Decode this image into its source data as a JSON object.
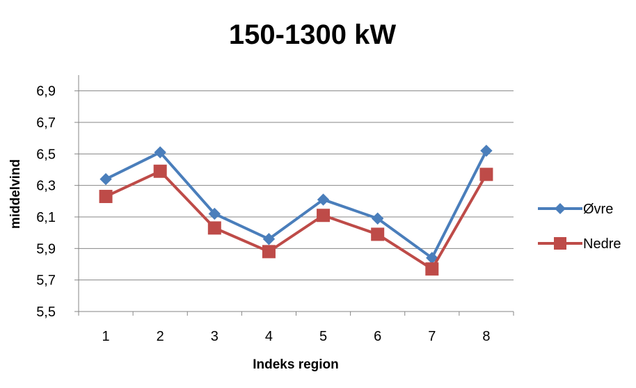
{
  "chart_data": {
    "type": "line",
    "title": "150-1300 kW",
    "xlabel": "Indeks region",
    "ylabel": "middelvind",
    "categories": [
      "1",
      "2",
      "3",
      "4",
      "5",
      "6",
      "7",
      "8"
    ],
    "y_ticks": [
      "5,5",
      "5,7",
      "5,9",
      "6,1",
      "6,3",
      "6,5",
      "6,7",
      "6,9"
    ],
    "ylim": [
      5.5,
      7.0
    ],
    "grid": true,
    "legend_position": "right",
    "series": [
      {
        "name": "Øvre",
        "color": "#4a7ebb",
        "marker": "diamond",
        "values": [
          6.34,
          6.51,
          6.12,
          5.96,
          6.21,
          6.09,
          5.84,
          6.52
        ]
      },
      {
        "name": "Nedre",
        "color": "#be4b48",
        "marker": "square",
        "values": [
          6.23,
          6.39,
          6.03,
          5.88,
          6.11,
          5.99,
          5.77,
          6.37
        ]
      }
    ]
  }
}
